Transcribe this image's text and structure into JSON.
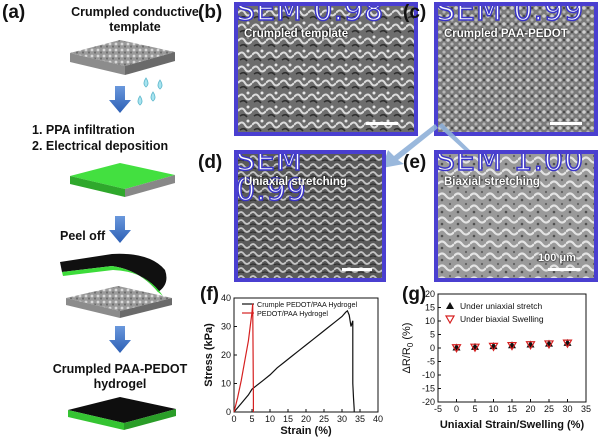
{
  "panel_a": {
    "label": "(a)",
    "step_template_line1": "Crumpled conductive",
    "step_template_line2": "template",
    "step_infiltration": "1. PPA infiltration",
    "step_deposition": "2. Electrical deposition",
    "step_peel": "Peel off",
    "step_result_line1": "Crumpled PAA-PEDOT",
    "step_result_line2": "hydrogel"
  },
  "sem_panels": [
    {
      "label": "(b)",
      "tag": "SEM 0.98",
      "caption": "Crumpled template"
    },
    {
      "label": "(c)",
      "tag": "SEM 0.99",
      "caption": "Crumpled PAA-PEDOT"
    },
    {
      "label": "(d)",
      "tag": "SEM 0.99",
      "caption": "Uniaxial stretching"
    },
    {
      "label": "(e)",
      "tag": "SEM 1.00",
      "caption": "Biaxial stretching"
    }
  ],
  "scale_bar_label": "100 μm",
  "colors": {
    "frame": "#4a3fd0",
    "hydrogel_green": "#3ddc3a",
    "arrow_blue": "#3f73c9",
    "red": "#d62020",
    "black": "#111111"
  },
  "chart_data": [
    {
      "panel_label": "(f)",
      "type": "line",
      "xlabel": "Strain (%)",
      "ylabel": "Stress (kPa)",
      "xlim": [
        0,
        40
      ],
      "ylim": [
        0,
        40
      ],
      "xticks": [
        0,
        5,
        10,
        15,
        20,
        25,
        30,
        35,
        40
      ],
      "yticks": [
        0,
        10,
        20,
        30,
        40
      ],
      "legend": "top-left",
      "series": [
        {
          "name": "Crumple PEDOT/PAA Hydrogel",
          "color": "#111111",
          "x": [
            0,
            2,
            4,
            5,
            6,
            8,
            10,
            12,
            14,
            16,
            18,
            20,
            22,
            24,
            26,
            28,
            30,
            31,
            31.5,
            32,
            32.5,
            33,
            33,
            33.2,
            33.4,
            33.4
          ],
          "y": [
            0,
            3,
            6,
            8,
            9,
            11,
            13,
            15.5,
            17.5,
            19.5,
            21.5,
            23.5,
            25.5,
            27.5,
            29.5,
            31.5,
            33.5,
            35,
            35.5,
            34,
            30,
            32,
            10,
            5,
            1,
            0
          ]
        },
        {
          "name": "PEDOT/PAA Hydrogel",
          "color": "#d62020",
          "x": [
            0,
            1,
            2,
            3,
            4,
            4.5,
            5,
            5.2,
            5.3,
            5.4,
            5.4
          ],
          "y": [
            0,
            5,
            11,
            18,
            25,
            30,
            35,
            38,
            20,
            5,
            0
          ]
        }
      ]
    },
    {
      "panel_label": "(g)",
      "type": "scatter",
      "xlabel": "Uniaxial Strain/Swelling (%)",
      "ylabel_parts": {
        "a": "ΔR/R",
        "sub": "0",
        "b": " (%)"
      },
      "xlim": [
        -5,
        35
      ],
      "ylim": [
        -20,
        20
      ],
      "xticks": [
        -5,
        0,
        5,
        10,
        15,
        20,
        25,
        30,
        35
      ],
      "yticks": [
        -20,
        -15,
        -10,
        -5,
        0,
        5,
        10,
        15,
        20
      ],
      "legend": "top",
      "series": [
        {
          "name": "Under uniaxial stretch",
          "marker": "triangle-up",
          "color": "#111111",
          "x": [
            0,
            5,
            10,
            15,
            20,
            25,
            30
          ],
          "y": [
            0.2,
            0.4,
            0.7,
            1.0,
            1.3,
            1.6,
            1.9
          ]
        },
        {
          "name": "Under biaxial Swelling",
          "marker": "triangle-down-open",
          "color": "#d62020",
          "x": [
            0,
            5,
            10,
            15,
            20,
            25,
            30
          ],
          "y": [
            0.1,
            0.3,
            0.6,
            0.9,
            1.2,
            1.5,
            1.8
          ]
        }
      ]
    }
  ]
}
